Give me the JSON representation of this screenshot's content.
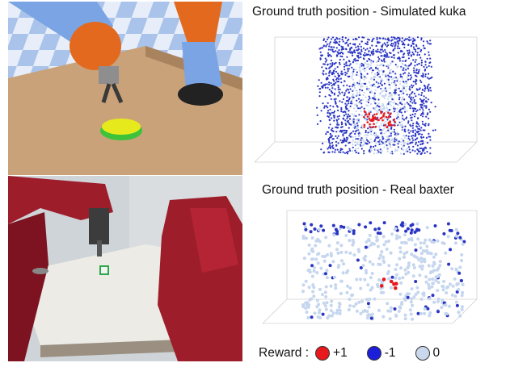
{
  "panels": {
    "sim": {
      "title": "Ground truth position - Simulated kuka"
    },
    "real": {
      "title": "Ground truth position - Real baxter"
    }
  },
  "legend": {
    "title": "Reward :",
    "items": [
      {
        "label": "+1",
        "color": "#e8191c"
      },
      {
        "label": "-1",
        "color": "#1b1fd9"
      },
      {
        "label": "0",
        "color": "#c9d8ec"
      }
    ]
  },
  "colors": {
    "positive": "#e8191c",
    "negative": "#2a35c4",
    "neutral": "#c5d6ee",
    "sky": "#8fb0e0",
    "floor": "#c9a27a",
    "robot_orange": "#e2691e",
    "robot_blue": "#7aa4e3",
    "baxter_red": "#9e1d2a",
    "button_yellow": "#e6ea1c",
    "button_green": "#3dc23a"
  }
}
